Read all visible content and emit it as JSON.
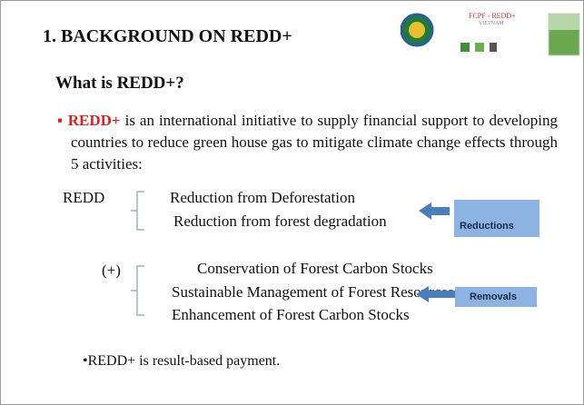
{
  "header": {
    "title": "1. BACKGROUND ON REDD+",
    "logo_text": "FCPF - REDD+",
    "logo_subtext": "VIETNAM"
  },
  "body": {
    "heading": "What is REDD+?",
    "bullet": {
      "term": "REDD+",
      "text": " is an international initiative to supply financial support to developing countries to reduce green house gas to mitigate climate change effects through 5 activities:"
    },
    "groups": [
      {
        "label": "REDD",
        "items": [
          "Reduction from Deforestation",
          "Reduction from forest degradation"
        ],
        "tag": "Reductions"
      },
      {
        "label": "(+)",
        "items": [
          "Conservation of Forest Carbon Stocks",
          "Sustainable Management of Forest Resources",
          "Enhancement of Forest Carbon Stocks"
        ],
        "tag": "Removals"
      }
    ],
    "footer_bullet": "•REDD+ is result-based payment."
  }
}
